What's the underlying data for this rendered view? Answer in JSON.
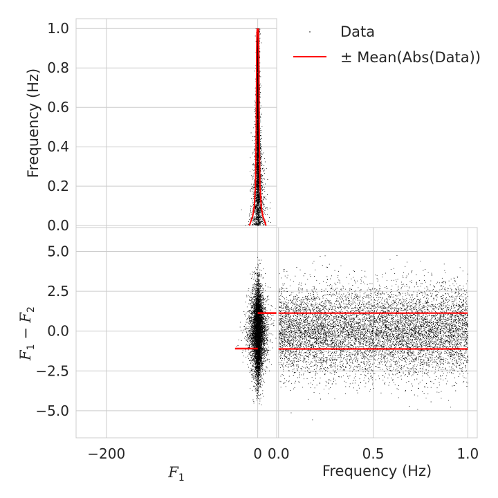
{
  "chart_data": [
    {
      "panel": "top-left",
      "type": "scatter",
      "ylabel": "Frequency (Hz)",
      "xlim": [
        -240,
        25
      ],
      "ylim": [
        -0.01,
        1.05
      ],
      "yticks": [
        "0.0",
        "0.2",
        "0.4",
        "0.6",
        "0.8",
        "1.0"
      ],
      "ytick_values": [
        0.0,
        0.2,
        0.4,
        0.6,
        0.8,
        1.0
      ],
      "grid": true,
      "series": [
        {
          "name": "Data",
          "kind": "points",
          "color": "#000000",
          "distribution": "x ~ Laplace(0, scale≈3), y ~ Uniform(0,1)"
        },
        {
          "name": "± Mean(Abs(Data))",
          "kind": "line",
          "color": "#ff0000",
          "y": [
            0.0,
            0.05,
            0.1,
            0.2,
            0.4,
            0.6,
            0.8,
            0.9,
            0.97,
            1.0
          ],
          "x_plus": [
            11.0,
            6.5,
            4.5,
            3.0,
            2.2,
            1.8,
            1.5,
            1.3,
            1.0,
            0.7
          ],
          "x_minus": [
            -11.0,
            -6.5,
            -4.5,
            -3.0,
            -2.2,
            -1.8,
            -1.5,
            -1.3,
            -1.0,
            -0.7
          ]
        }
      ]
    },
    {
      "panel": "bottom-left",
      "type": "scatter",
      "xlabel": "F1",
      "ylabel": "F1 − F2",
      "xlim": [
        -240,
        25
      ],
      "ylim": [
        -6.7,
        6.5
      ],
      "xticks": [
        "−200",
        "0"
      ],
      "xtick_values": [
        -200,
        0
      ],
      "yticks": [
        "5.0",
        "2.5",
        "0.0",
        "−2.5",
        "−5.0"
      ],
      "ytick_values": [
        5.0,
        2.5,
        0.0,
        -2.5,
        -5.0
      ],
      "grid": true,
      "series": [
        {
          "name": "Data",
          "kind": "points",
          "color": "#000000"
        },
        {
          "name": "± Mean(Abs(Data))",
          "kind": "lines",
          "color": "#ff0000",
          "segments": [
            {
              "y": 1.13,
              "x_from": 0,
              "x_to": 30
            },
            {
              "y": -1.1,
              "x_from": -30,
              "x_to": 0
            }
          ]
        }
      ]
    },
    {
      "panel": "bottom-right",
      "type": "scatter",
      "xlabel": "Frequency (Hz)",
      "xlim": [
        -0.01,
        1.05
      ],
      "ylim": [
        -6.7,
        6.5
      ],
      "xticks": [
        "0.0",
        "0.5",
        "1.0"
      ],
      "xtick_values": [
        0.0,
        0.5,
        1.0
      ],
      "grid": true,
      "series": [
        {
          "name": "Data",
          "kind": "points",
          "color": "#000000",
          "distribution": "x ~ Uniform(0,1), y ~ Normal(0, sd≈1.4)"
        },
        {
          "name": "± Mean(Abs(Data))",
          "kind": "lines",
          "color": "#ff0000",
          "segments": [
            {
              "y": 1.13,
              "x_from": 0.0,
              "x_to": 1.0
            },
            {
              "y": -1.12,
              "x_from": 0.0,
              "x_to": 1.0
            }
          ]
        }
      ]
    }
  ],
  "legend": {
    "placement": "top-right",
    "entries": [
      {
        "label": "Data",
        "kind": "point",
        "color": "#000000"
      },
      {
        "label": "± Mean(Abs(Data))",
        "kind": "line",
        "color": "#ff0000"
      }
    ]
  },
  "axis_text": {
    "tl_ylabel": "Frequency (Hz)",
    "bl_ylabel_a": "F",
    "bl_ylabel_sub1": "1",
    "bl_ylabel_minus": " − ",
    "bl_ylabel_b": "F",
    "bl_ylabel_sub2": "2",
    "bl_xlabel_a": "F",
    "bl_xlabel_sub": "1",
    "br_xlabel": "Frequency (Hz)"
  },
  "colors": {
    "grid": "#cccccc",
    "spine": "#cccccc",
    "data": "#000000",
    "mean": "#ff0000",
    "background": "#ffffff"
  }
}
